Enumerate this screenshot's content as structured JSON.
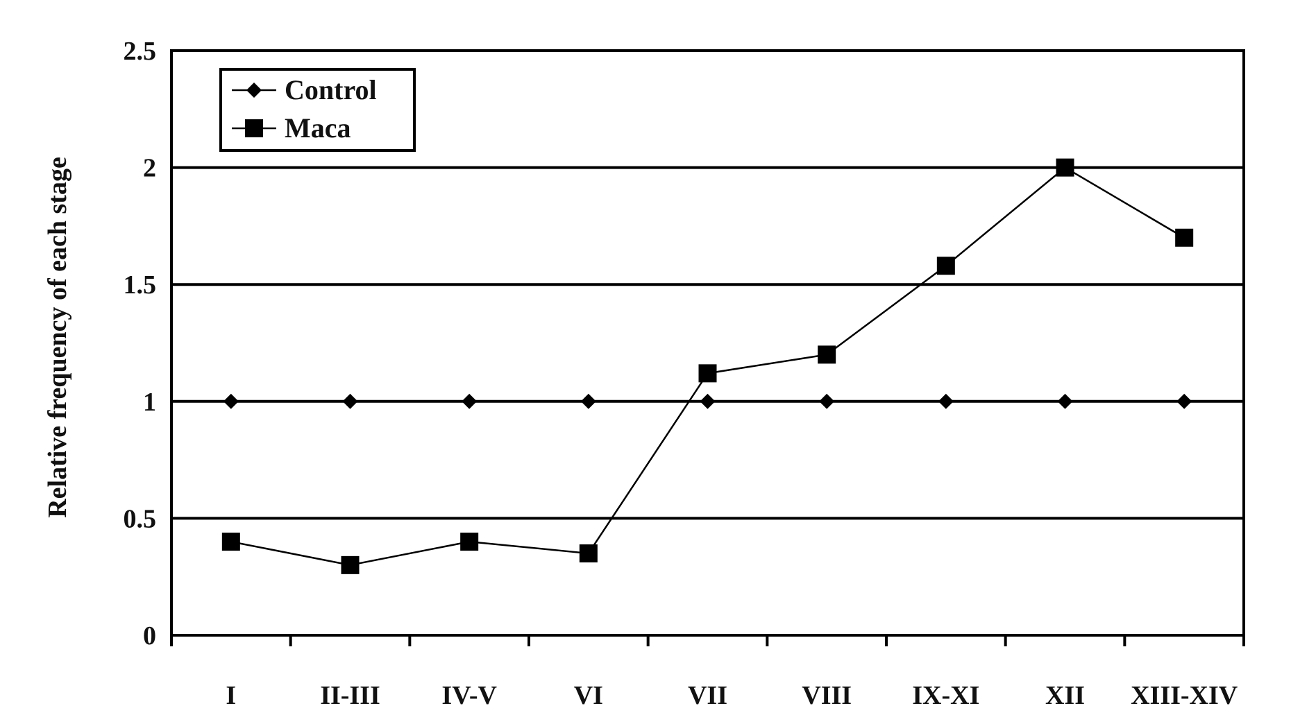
{
  "chart_data": {
    "type": "line",
    "title": "",
    "xlabel": "",
    "ylabel": "Relative frequency of each stage",
    "categories": [
      "I",
      "II-III",
      "IV-V",
      "VI",
      "VII",
      "VIII",
      "IX-XI",
      "XII",
      "XIII-XIV"
    ],
    "ylim": [
      0,
      2.5
    ],
    "yticks": [
      "0",
      "0.5",
      "1",
      "1.5",
      "2",
      "2.5"
    ],
    "grid": "horizontal",
    "legend_position": "top-left",
    "series": [
      {
        "name": "Control",
        "marker": "diamond",
        "color": "#000000",
        "values": [
          1,
          1,
          1,
          1,
          1,
          1,
          1,
          1,
          1
        ]
      },
      {
        "name": "Maca",
        "marker": "square",
        "color": "#000000",
        "values": [
          0.4,
          0.3,
          0.4,
          0.35,
          1.12,
          1.2,
          1.58,
          2.0,
          1.7
        ]
      }
    ]
  }
}
